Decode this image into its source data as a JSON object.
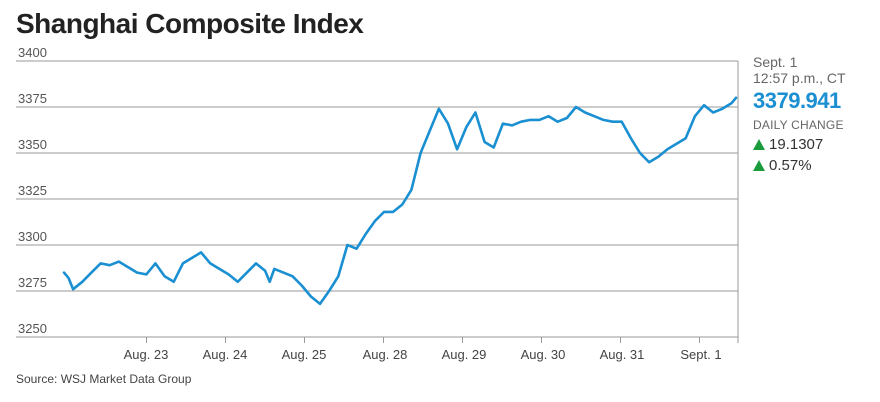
{
  "chart_data": {
    "type": "line",
    "title": "Shanghai Composite Index",
    "ylim": [
      3250,
      3400
    ],
    "yticks": [
      3400,
      3375,
      3350,
      3325,
      3300,
      3275,
      3250
    ],
    "categories": [
      "Aug. 23",
      "Aug. 24",
      "Aug. 25",
      "Aug. 28",
      "Aug. 29",
      "Aug. 30",
      "Aug. 31",
      "Sept. 1"
    ],
    "series": [
      {
        "color": "#1a8fd1",
        "points": [
          [
            0.0,
            3285
          ],
          [
            0.05,
            3282
          ],
          [
            0.1,
            3276
          ],
          [
            0.2,
            3280
          ],
          [
            0.3,
            3285
          ],
          [
            0.4,
            3290
          ],
          [
            0.5,
            3289
          ],
          [
            0.6,
            3291
          ],
          [
            0.7,
            3288
          ],
          [
            0.8,
            3285
          ],
          [
            0.9,
            3284
          ],
          [
            1.0,
            3290
          ],
          [
            1.1,
            3283
          ],
          [
            1.2,
            3280
          ],
          [
            1.3,
            3290
          ],
          [
            1.4,
            3293
          ],
          [
            1.5,
            3296
          ],
          [
            1.6,
            3290
          ],
          [
            1.7,
            3287
          ],
          [
            1.8,
            3284
          ],
          [
            1.9,
            3280
          ],
          [
            2.0,
            3285
          ],
          [
            2.1,
            3290
          ],
          [
            2.2,
            3286
          ],
          [
            2.25,
            3280
          ],
          [
            2.3,
            3287
          ],
          [
            2.4,
            3285
          ],
          [
            2.5,
            3283
          ],
          [
            2.6,
            3278
          ],
          [
            2.7,
            3272
          ],
          [
            2.8,
            3268
          ],
          [
            2.9,
            3275
          ],
          [
            3.0,
            3283
          ],
          [
            3.1,
            3300
          ],
          [
            3.2,
            3298
          ],
          [
            3.3,
            3306
          ],
          [
            3.4,
            3313
          ],
          [
            3.5,
            3318
          ],
          [
            3.6,
            3318
          ],
          [
            3.7,
            3322
          ],
          [
            3.8,
            3330
          ],
          [
            3.9,
            3350
          ],
          [
            4.0,
            3362
          ],
          [
            4.1,
            3374
          ],
          [
            4.2,
            3366
          ],
          [
            4.3,
            3352
          ],
          [
            4.4,
            3364
          ],
          [
            4.5,
            3372
          ],
          [
            4.6,
            3356
          ],
          [
            4.7,
            3353
          ],
          [
            4.8,
            3366
          ],
          [
            4.9,
            3365
          ],
          [
            5.0,
            3367
          ],
          [
            5.1,
            3368
          ],
          [
            5.2,
            3368
          ],
          [
            5.3,
            3370
          ],
          [
            5.4,
            3367
          ],
          [
            5.5,
            3369
          ],
          [
            5.6,
            3375
          ],
          [
            5.7,
            3372
          ],
          [
            5.8,
            3370
          ],
          [
            5.9,
            3368
          ],
          [
            6.0,
            3367
          ],
          [
            6.1,
            3367
          ],
          [
            6.2,
            3358
          ],
          [
            6.3,
            3350
          ],
          [
            6.4,
            3345
          ],
          [
            6.5,
            3348
          ],
          [
            6.6,
            3352
          ],
          [
            6.7,
            3355
          ],
          [
            6.8,
            3358
          ],
          [
            6.9,
            3370
          ],
          [
            7.0,
            3376
          ],
          [
            7.1,
            3372
          ],
          [
            7.2,
            3374
          ],
          [
            7.3,
            3377
          ],
          [
            7.35,
            3380
          ]
        ]
      }
    ],
    "grid": true,
    "last_value": "3379.941",
    "as_of_date": "Sept. 1",
    "as_of_time": "12:57 p.m., CT",
    "daily_change_label": "DAILY CHANGE",
    "change_abs": "19.1307",
    "change_pct": "0.57%",
    "source": "Source: WSJ Market Data Group"
  }
}
